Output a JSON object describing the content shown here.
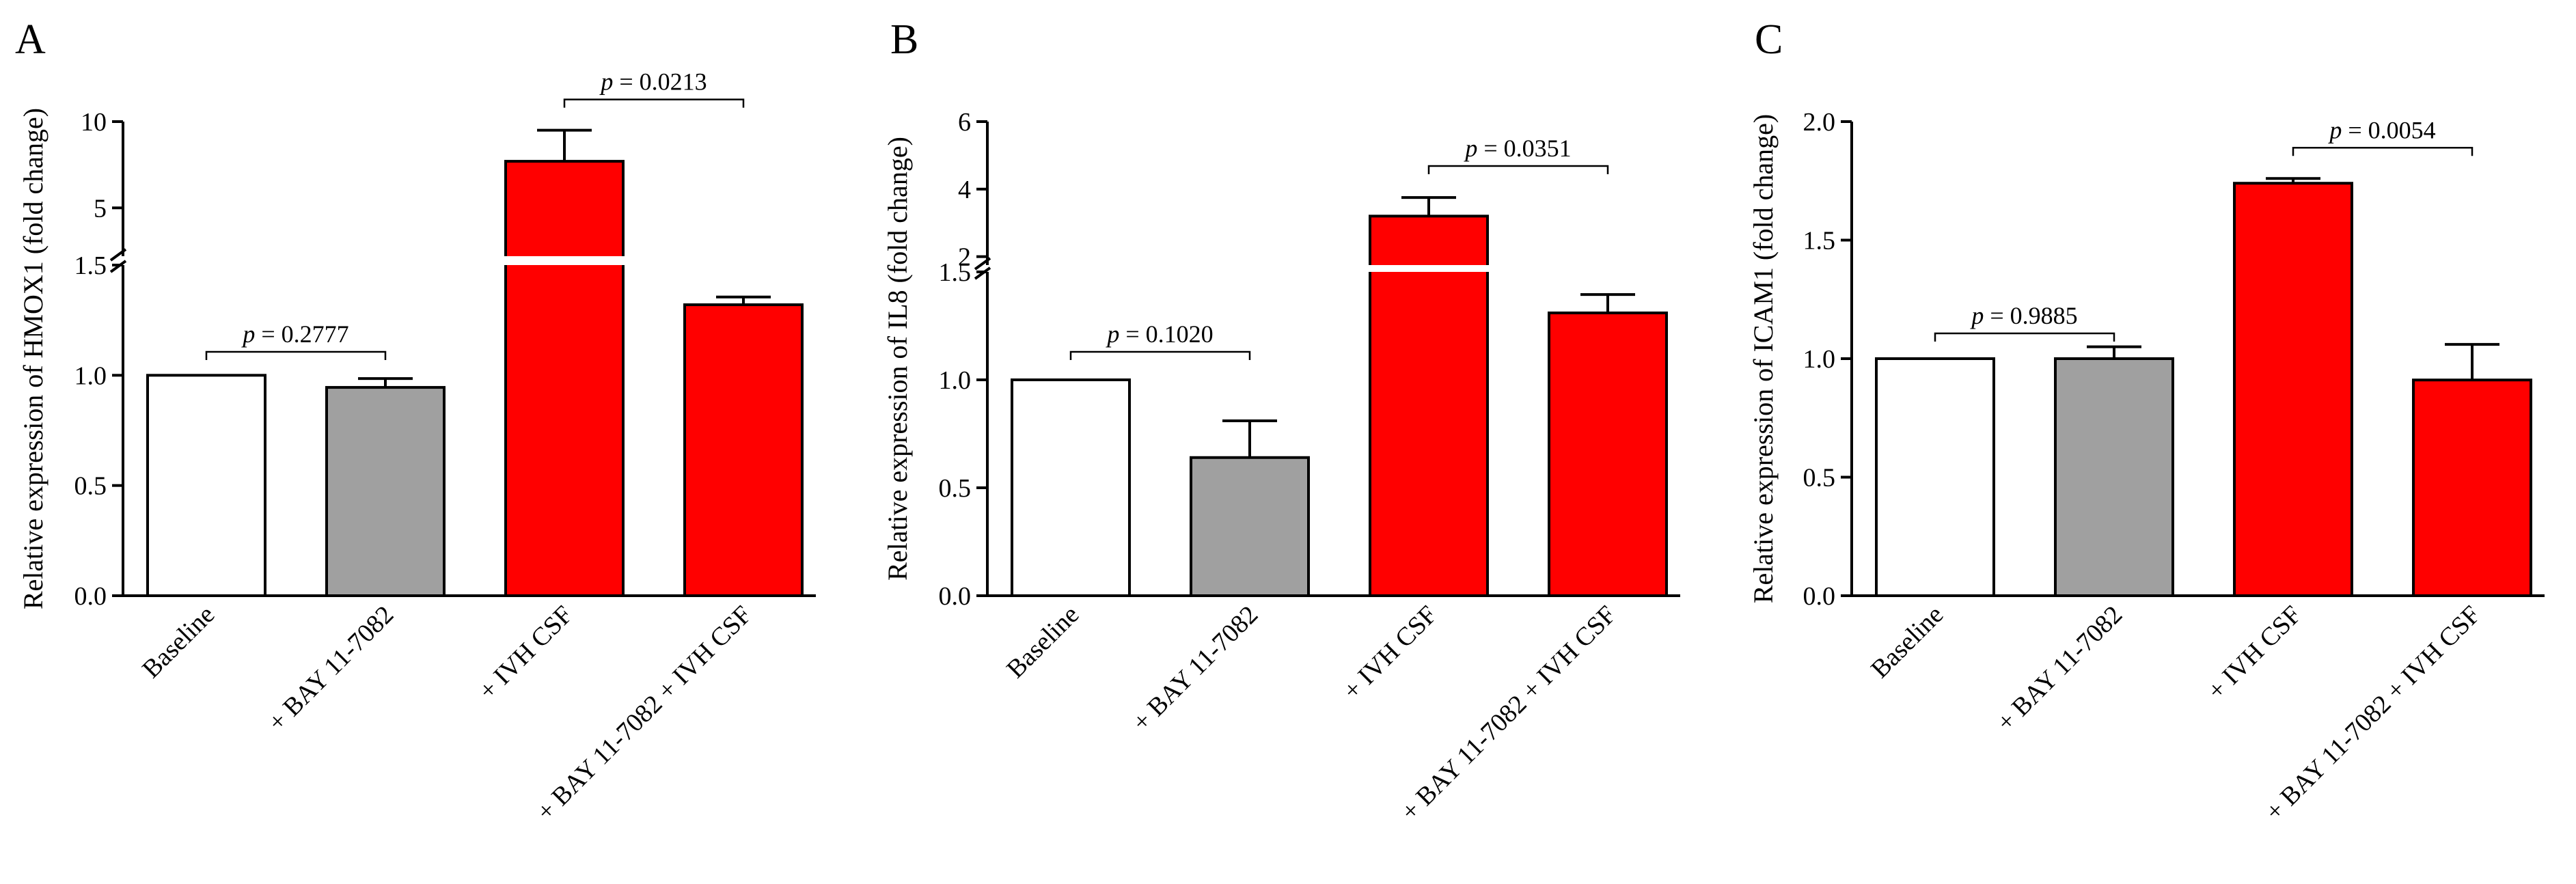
{
  "colors": {
    "baseline": "#ffffff",
    "bay": "#a0a0a0",
    "ivh": "#ff0000",
    "combo": "#ff0000"
  },
  "chart_data": [
    {
      "type": "bar",
      "panel": "A",
      "categories": [
        "Baseline",
        "+ BAY 11-7082",
        "+ IVH CSF",
        "+ BAY 11-7082 + IVH CSF"
      ],
      "values": [
        1.0,
        0.945,
        7.7,
        1.32
      ],
      "errors": [
        0.0,
        0.04,
        1.8,
        0.035
      ],
      "ylabel": "Relative expression of HMOX1 (fold change)",
      "ylim": [
        0,
        10
      ],
      "axis_break": true,
      "lower_ticks": [
        "0.0",
        "0.5",
        "1.0",
        "1.5"
      ],
      "upper_ticks": [
        "5",
        "10"
      ],
      "comparisons": [
        {
          "from": 0,
          "to": 1,
          "label_p": "p",
          "label_rest": " = 0.2777"
        },
        {
          "from": 2,
          "to": 3,
          "label_p": "p",
          "label_rest": " = 0.0213"
        }
      ]
    },
    {
      "type": "bar",
      "panel": "B",
      "categories": [
        "Baseline",
        "+ BAY 11-7082",
        "+ IVH CSF",
        "+ BAY 11-7082 + IVH CSF"
      ],
      "values": [
        1.0,
        0.64,
        3.2,
        1.31
      ],
      "errors": [
        0.0,
        0.17,
        0.55,
        0.085
      ],
      "ylabel": "Relative expression of IL8 (fold change)",
      "ylim": [
        0,
        6
      ],
      "axis_break": true,
      "lower_ticks": [
        "0.0",
        "0.5",
        "1.0",
        "1.5"
      ],
      "upper_ticks": [
        "2",
        "4",
        "6"
      ],
      "comparisons": [
        {
          "from": 0,
          "to": 1,
          "label_p": "p",
          "label_rest": " = 0.1020"
        },
        {
          "from": 2,
          "to": 3,
          "label_p": "p",
          "label_rest": " = 0.0351"
        }
      ]
    },
    {
      "type": "bar",
      "panel": "C",
      "categories": [
        "Baseline",
        "+ BAY 11-7082",
        "+ IVH CSF",
        "+ BAY 11-7082 + IVH CSF"
      ],
      "values": [
        1.0,
        1.0,
        1.74,
        0.91
      ],
      "errors": [
        0.0,
        0.05,
        0.02,
        0.15
      ],
      "ylabel": "Relative expression of ICAM1 (fold change)",
      "ylim": [
        0,
        2.0
      ],
      "axis_break": false,
      "ticks": [
        "0.0",
        "0.5",
        "1.0",
        "1.5",
        "2.0"
      ],
      "comparisons": [
        {
          "from": 0,
          "to": 1,
          "label_p": "p",
          "label_rest": " = 0.9885"
        },
        {
          "from": 2,
          "to": 3,
          "label_p": "p",
          "label_rest": " = 0.0054"
        }
      ]
    }
  ]
}
